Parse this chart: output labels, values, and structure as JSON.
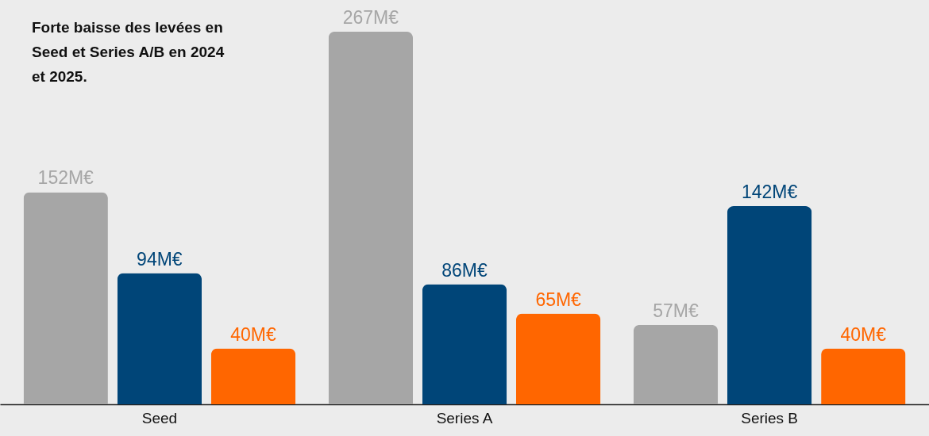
{
  "chart_data": {
    "type": "bar",
    "title": "Forte baisse des levées en Seed et Series A/B en 2024 et 2025.",
    "categories": [
      "Seed",
      "Series A",
      "Series B"
    ],
    "series": [
      {
        "color": "#a6a6a6",
        "values": [
          152,
          267,
          57
        ],
        "value_labels": [
          "152M€",
          "267M€",
          "57M€"
        ]
      },
      {
        "color": "#004578",
        "values": [
          94,
          86,
          142
        ],
        "value_labels": [
          "94M€",
          "86M€",
          "142M€"
        ]
      },
      {
        "color": "#ff6600",
        "values": [
          40,
          65,
          40
        ],
        "value_labels": [
          "40M€",
          "65M€",
          "40M€"
        ]
      }
    ],
    "grid": false
  }
}
